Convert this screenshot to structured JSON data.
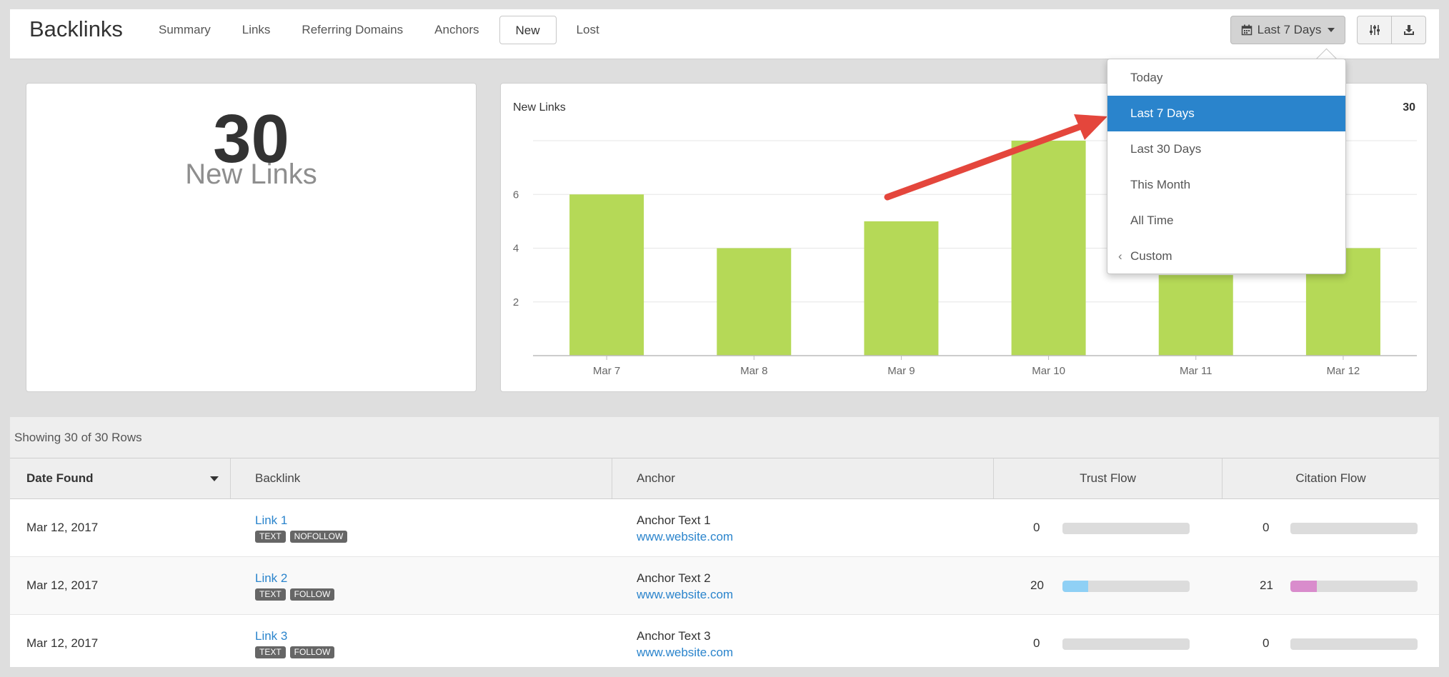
{
  "header": {
    "title": "Backlinks",
    "tabs": [
      {
        "label": "Summary",
        "active": false
      },
      {
        "label": "Links",
        "active": false
      },
      {
        "label": "Referring Domains",
        "active": false
      },
      {
        "label": "Anchors",
        "active": false
      },
      {
        "label": "New",
        "active": true
      },
      {
        "label": "Lost",
        "active": false
      }
    ],
    "date_range_button": {
      "label": "Last 7 Days",
      "icon": "calendar-icon"
    },
    "tool_buttons": [
      {
        "icon": "sliders-icon"
      },
      {
        "icon": "download-icon"
      }
    ]
  },
  "date_dropdown": {
    "items": [
      {
        "label": "Today",
        "selected": false
      },
      {
        "label": "Last 7 Days",
        "selected": true
      },
      {
        "label": "Last 30 Days",
        "selected": false
      },
      {
        "label": "This Month",
        "selected": false
      },
      {
        "label": "All Time",
        "selected": false
      },
      {
        "label": "Custom",
        "selected": false,
        "icon": "chevron-left-icon"
      }
    ]
  },
  "stat": {
    "value": "30",
    "label": "New Links"
  },
  "chart_panel": {
    "title": "New Links",
    "total": "30"
  },
  "chart_data": {
    "type": "bar",
    "title": "New Links",
    "categories": [
      "Mar 7",
      "Mar 8",
      "Mar 9",
      "Mar 10",
      "Mar 11",
      "Mar 12"
    ],
    "values": [
      6,
      4,
      5,
      8,
      3,
      4
    ],
    "y_ticks": [
      "2",
      "4",
      "6"
    ],
    "ylim": [
      0,
      8
    ],
    "bar_color": "#b5d957",
    "grid": true
  },
  "table": {
    "info": "Showing 30 of 30 Rows",
    "columns": [
      "Date Found",
      "Backlink",
      "Anchor",
      "Trust Flow",
      "Citation Flow"
    ],
    "rows": [
      {
        "date": "Mar 12, 2017",
        "link": "Link 1",
        "badges": [
          "TEXT",
          "NOFOLLOW"
        ],
        "anchor": "Anchor Text 1",
        "url": "www.website.com",
        "trust_flow": "0",
        "citation_flow": "0"
      },
      {
        "date": "Mar 12, 2017",
        "link": "Link 2",
        "badges": [
          "TEXT",
          "FOLLOW"
        ],
        "anchor": "Anchor Text 2",
        "url": "www.website.com",
        "trust_flow": "20",
        "citation_flow": "21"
      },
      {
        "date": "Mar 12, 2017",
        "link": "Link 3",
        "badges": [
          "TEXT",
          "FOLLOW"
        ],
        "anchor": "Anchor Text 3",
        "url": "www.website.com",
        "trust_flow": "0",
        "citation_flow": "0"
      }
    ]
  },
  "colors": {
    "accent": "#2a84cc",
    "trust_flow_fill": "#8fd0f5",
    "citation_flow_fill": "#d98ccc",
    "annotation_arrow": "#e4463c"
  }
}
